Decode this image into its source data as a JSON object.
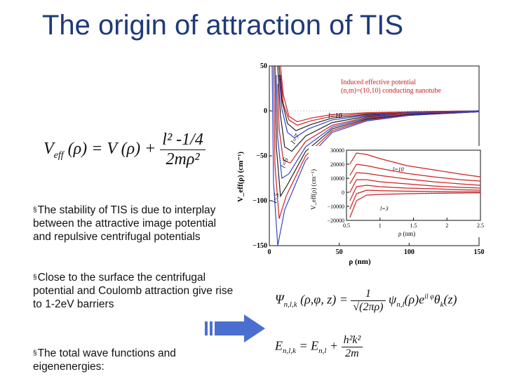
{
  "slide": {
    "title": "The origin of attraction of TIS",
    "bullets": [
      "The stability of TIS is due to interplay between the attractive image potential and repulsive centrifugal potentials",
      "Close to the surface the centrifugal potential and Coulomb attraction give rise to 1-2eV barriers",
      "The total wave functions and eigenenergies:"
    ],
    "bullet_marker": "§"
  },
  "equations": {
    "veff": {
      "lhs": "V",
      "lhs_sub": "eff",
      "arg": "(ρ) = V (ρ) +",
      "num": "l² -1/4",
      "den": "2mρ²"
    },
    "psi": {
      "lhs": "Ψ",
      "lhs_sub": "n,l,k",
      "arg": "(ρ,φ, z) =",
      "num": "1",
      "den": "√(2πρ)",
      "rhs": "ψ",
      "rhs_sub": "n,l",
      "rhs_tail": "(ρ)e",
      "rhs_sup": "il φ",
      "rhs_end": "θ",
      "rhs_end_sub": "k",
      "rhs_end_arg": "(z)"
    },
    "energy": {
      "lhs": "E",
      "lhs_sub": "n,l,k",
      "mid": "= E",
      "mid_sub": "n,l",
      "plus": "+",
      "num": "h²k²",
      "den": "2m"
    }
  },
  "chart_data": [
    {
      "type": "line",
      "title": "",
      "legend": [
        "Induced effective potential",
        "(n,m)=(10,10) conducting nanotube"
      ],
      "xlabel": "ρ (nm)",
      "ylabel": "V_eff(ρ) (cm⁻¹)",
      "xlim": [
        0,
        150
      ],
      "ylim": [
        -150,
        50
      ],
      "x_ticks": [
        "0",
        "50",
        "100",
        "150"
      ],
      "y_ticks": [
        "50",
        "0",
        "−50",
        "−100",
        "−150"
      ],
      "annotations": [
        "l=10",
        "l=7",
        "l=6",
        "l=5"
      ],
      "series": [
        {
          "color": "#cc2222",
          "values": [
            [
              8,
              50
            ],
            [
              10,
              18
            ],
            [
              14,
              -6
            ],
            [
              20,
              -12
            ],
            [
              30,
              -8
            ],
            [
              45,
              -4
            ],
            [
              70,
              -2
            ],
            [
              100,
              -1
            ],
            [
              150,
              0
            ]
          ]
        },
        {
          "color": "#cc2222",
          "values": [
            [
              8,
              40
            ],
            [
              10,
              8
            ],
            [
              14,
              -10
            ],
            [
              20,
              -16
            ],
            [
              30,
              -11
            ],
            [
              45,
              -6
            ],
            [
              70,
              -3
            ],
            [
              100,
              -1
            ],
            [
              150,
              0
            ]
          ]
        },
        {
          "color": "#222222",
          "values": [
            [
              7,
              50
            ],
            [
              9,
              12
            ],
            [
              13,
              -14
            ],
            [
              19,
              -22
            ],
            [
              30,
              -15
            ],
            [
              45,
              -8
            ],
            [
              70,
              -4
            ],
            [
              100,
              -2
            ],
            [
              150,
              0
            ]
          ]
        },
        {
          "color": "#3344cc",
          "values": [
            [
              7,
              40
            ],
            [
              9,
              2
            ],
            [
              13,
              -24
            ],
            [
              18,
              -30
            ],
            [
              28,
              -20
            ],
            [
              45,
              -10
            ],
            [
              70,
              -5
            ],
            [
              100,
              -2
            ],
            [
              150,
              0
            ]
          ]
        },
        {
          "color": "#222222",
          "values": [
            [
              6,
              50
            ],
            [
              8,
              -5
            ],
            [
              11,
              -40
            ],
            [
              16,
              -45
            ],
            [
              26,
              -28
            ],
            [
              45,
              -13
            ],
            [
              70,
              -6
            ],
            [
              100,
              -3
            ],
            [
              150,
              -1
            ]
          ]
        },
        {
          "color": "#cc2222",
          "values": [
            [
              6,
              30
            ],
            [
              7,
              -20
            ],
            [
              10,
              -55
            ],
            [
              15,
              -58
            ],
            [
              26,
              -34
            ],
            [
              45,
              -16
            ],
            [
              70,
              -7
            ],
            [
              100,
              -3
            ],
            [
              150,
              -1
            ]
          ]
        },
        {
          "color": "#3344cc",
          "values": [
            [
              5,
              40
            ],
            [
              6,
              -30
            ],
            [
              9,
              -75
            ],
            [
              14,
              -70
            ],
            [
              26,
              -40
            ],
            [
              45,
              -18
            ],
            [
              70,
              -8
            ],
            [
              100,
              -4
            ],
            [
              150,
              -1
            ]
          ]
        },
        {
          "color": "#222222",
          "values": [
            [
              4,
              50
            ],
            [
              5,
              -40
            ],
            [
              8,
              -95
            ],
            [
              13,
              -82
            ],
            [
              26,
              -45
            ],
            [
              45,
              -20
            ],
            [
              70,
              -9
            ],
            [
              100,
              -4
            ],
            [
              150,
              -1
            ]
          ]
        },
        {
          "color": "#cc2222",
          "values": [
            [
              3,
              50
            ],
            [
              4,
              -60
            ],
            [
              7,
              -120
            ],
            [
              12,
              -95
            ],
            [
              26,
              -50
            ],
            [
              45,
              -22
            ],
            [
              70,
              -10
            ],
            [
              100,
              -5
            ],
            [
              150,
              -1
            ]
          ]
        },
        {
          "color": "#3344cc",
          "values": [
            [
              2,
              50
            ],
            [
              3,
              -80
            ],
            [
              6,
              -150
            ],
            [
              11,
              -110
            ],
            [
              26,
              -55
            ],
            [
              45,
              -24
            ],
            [
              70,
              -11
            ],
            [
              100,
              -5
            ],
            [
              150,
              -1
            ]
          ]
        }
      ]
    },
    {
      "type": "line",
      "title": "",
      "xlabel": "ρ (nm)",
      "ylabel": "V_eff(ρ) (cm⁻¹)",
      "xlim": [
        0.5,
        2.5
      ],
      "ylim": [
        -20000,
        30000
      ],
      "x_ticks": [
        "0.5",
        "1",
        "1.5",
        "2",
        "2.5"
      ],
      "y_ticks": [
        "30000",
        "20000",
        "10000",
        "0",
        "−10000",
        "−20000"
      ],
      "annotations": [
        "l=10",
        "l=3"
      ],
      "series": [
        {
          "color": "#cc2222",
          "values": [
            [
              0.55,
              20000
            ],
            [
              0.65,
              28000
            ],
            [
              0.8,
              27000
            ],
            [
              1.0,
              24000
            ],
            [
              1.4,
              19000
            ],
            [
              1.8,
              16000
            ],
            [
              2.2,
              13000
            ],
            [
              2.5,
              11000
            ]
          ]
        },
        {
          "color": "#cc2222",
          "values": [
            [
              0.55,
              12000
            ],
            [
              0.65,
              20000
            ],
            [
              0.8,
              19000
            ],
            [
              1.0,
              17000
            ],
            [
              1.4,
              13500
            ],
            [
              1.8,
              11000
            ],
            [
              2.2,
              9000
            ],
            [
              2.5,
              8000
            ]
          ]
        },
        {
          "color": "#cc2222",
          "values": [
            [
              0.55,
              6000
            ],
            [
              0.65,
              14000
            ],
            [
              0.8,
              13500
            ],
            [
              1.0,
              12000
            ],
            [
              1.4,
              9500
            ],
            [
              1.8,
              7500
            ],
            [
              2.2,
              6000
            ],
            [
              2.5,
              5000
            ]
          ]
        },
        {
          "color": "#cc2222",
          "values": [
            [
              0.55,
              0
            ],
            [
              0.65,
              9000
            ],
            [
              0.8,
              9000
            ],
            [
              1.0,
              7500
            ],
            [
              1.4,
              6000
            ],
            [
              1.8,
              4500
            ],
            [
              2.2,
              3500
            ],
            [
              2.5,
              3000
            ]
          ]
        },
        {
          "color": "#cc2222",
          "values": [
            [
              0.55,
              -6000
            ],
            [
              0.65,
              4000
            ],
            [
              0.8,
              5000
            ],
            [
              1.0,
              4000
            ],
            [
              1.4,
              3000
            ],
            [
              1.8,
              2500
            ],
            [
              2.2,
              1800
            ],
            [
              2.5,
              1500
            ]
          ]
        },
        {
          "color": "#cc2222",
          "values": [
            [
              0.55,
              -12000
            ],
            [
              0.65,
              -1000
            ],
            [
              0.8,
              1500
            ],
            [
              1.0,
              1200
            ],
            [
              1.4,
              800
            ],
            [
              1.8,
              600
            ],
            [
              2.2,
              400
            ],
            [
              2.5,
              300
            ]
          ]
        },
        {
          "color": "#cc2222",
          "values": [
            [
              0.55,
              -18000
            ],
            [
              0.65,
              -6000
            ],
            [
              0.8,
              -2000
            ],
            [
              1.0,
              -1500
            ],
            [
              1.4,
              -1000
            ],
            [
              1.8,
              -700
            ],
            [
              2.2,
              -500
            ],
            [
              2.5,
              -400
            ]
          ]
        }
      ]
    }
  ]
}
